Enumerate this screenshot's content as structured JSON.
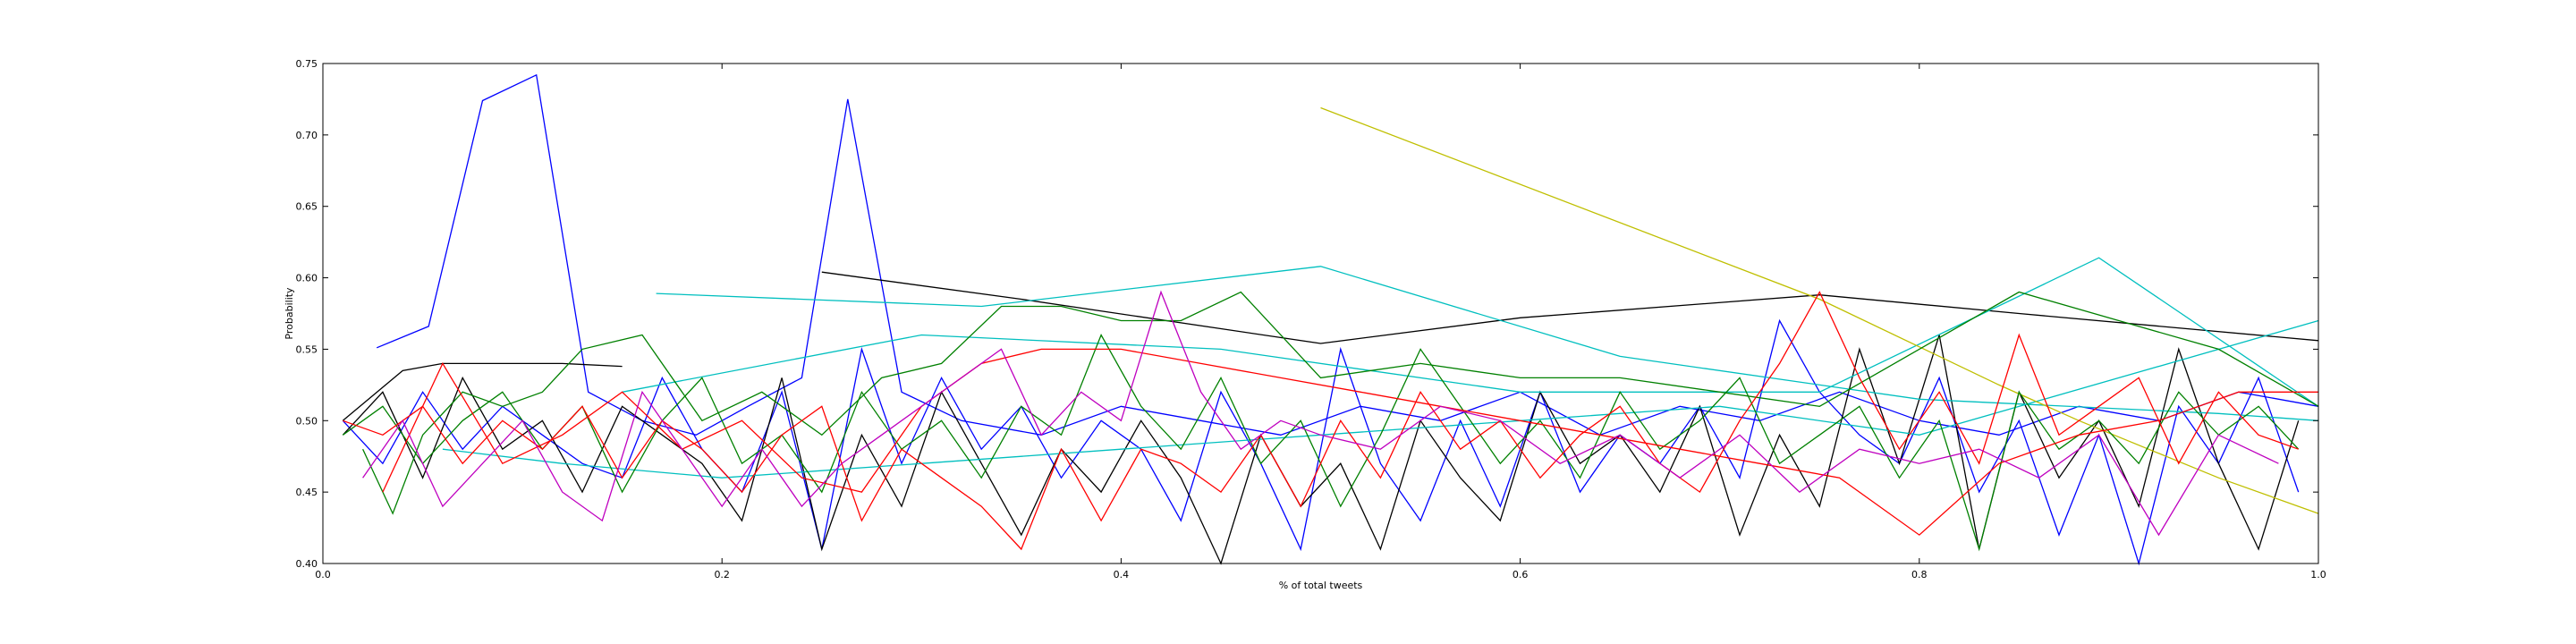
{
  "chart_data": {
    "type": "line",
    "title": "",
    "xlabel": "% of total tweets",
    "ylabel": "Probability",
    "xlim": [
      0.0,
      1.0
    ],
    "ylim": [
      0.4,
      0.75
    ],
    "xticks": [
      "0.0",
      "0.2",
      "0.4",
      "0.6",
      "0.8",
      "1.0"
    ],
    "yticks": [
      "0.40",
      "0.45",
      "0.50",
      "0.55",
      "0.60",
      "0.65",
      "0.70",
      "0.75"
    ],
    "grid": false,
    "legend": "none",
    "series": [
      {
        "color": "#0000ff",
        "x": [
          0.027,
          0.053,
          0.08,
          0.107,
          0.133,
          0.16,
          0.187,
          0.213,
          0.24,
          0.263,
          0.29,
          0.32,
          0.36,
          0.4,
          0.44,
          0.48,
          0.52,
          0.56,
          0.6,
          0.64,
          0.68,
          0.72,
          0.76,
          0.8,
          0.84,
          0.88,
          0.92,
          0.96,
          1.0
        ],
        "y": [
          0.551,
          0.566,
          0.724,
          0.742,
          0.52,
          0.5,
          0.49,
          0.51,
          0.53,
          0.725,
          0.52,
          0.5,
          0.49,
          0.51,
          0.5,
          0.49,
          0.51,
          0.5,
          0.52,
          0.49,
          0.51,
          0.5,
          0.52,
          0.5,
          0.49,
          0.51,
          0.5,
          0.52,
          0.51
        ]
      },
      {
        "color": "#0000ff",
        "x": [
          0.01,
          0.03,
          0.05,
          0.07,
          0.09,
          0.11,
          0.13,
          0.15,
          0.17,
          0.19,
          0.21,
          0.23,
          0.25,
          0.27,
          0.29,
          0.31,
          0.33,
          0.35,
          0.37,
          0.39,
          0.41,
          0.43,
          0.45,
          0.47,
          0.49,
          0.51,
          0.53,
          0.55,
          0.57,
          0.59,
          0.61,
          0.63,
          0.65,
          0.67,
          0.69,
          0.71,
          0.73,
          0.75,
          0.77,
          0.79,
          0.81,
          0.83,
          0.85,
          0.87,
          0.89,
          0.91,
          0.93,
          0.95,
          0.97,
          0.99
        ],
        "y": [
          0.5,
          0.47,
          0.52,
          0.48,
          0.51,
          0.49,
          0.47,
          0.46,
          0.53,
          0.48,
          0.45,
          0.52,
          0.41,
          0.55,
          0.47,
          0.53,
          0.48,
          0.51,
          0.46,
          0.5,
          0.48,
          0.43,
          0.52,
          0.47,
          0.41,
          0.55,
          0.47,
          0.43,
          0.5,
          0.44,
          0.52,
          0.45,
          0.49,
          0.47,
          0.51,
          0.46,
          0.57,
          0.52,
          0.49,
          0.47,
          0.53,
          0.45,
          0.5,
          0.42,
          0.49,
          0.4,
          0.51,
          0.47,
          0.53,
          0.45
        ]
      },
      {
        "color": "#000000",
        "x": [
          0.25,
          0.35,
          0.5,
          0.6,
          0.75,
          0.85,
          1.0
        ],
        "y": [
          0.604,
          0.585,
          0.554,
          0.572,
          0.588,
          0.575,
          0.556
        ]
      },
      {
        "color": "#000000",
        "x": [
          0.01,
          0.03,
          0.05,
          0.07,
          0.09,
          0.11,
          0.13,
          0.15,
          0.17,
          0.19,
          0.21,
          0.23,
          0.25,
          0.27,
          0.29,
          0.31,
          0.33,
          0.35,
          0.37,
          0.39,
          0.41,
          0.43,
          0.45,
          0.47,
          0.49,
          0.51,
          0.53,
          0.55,
          0.57,
          0.59,
          0.61,
          0.63,
          0.65,
          0.67,
          0.69,
          0.71,
          0.73,
          0.75,
          0.77,
          0.79,
          0.81,
          0.83,
          0.85,
          0.87,
          0.89,
          0.91,
          0.93,
          0.95,
          0.97,
          0.99
        ],
        "y": [
          0.49,
          0.52,
          0.46,
          0.53,
          0.48,
          0.5,
          0.45,
          0.51,
          0.49,
          0.47,
          0.43,
          0.53,
          0.41,
          0.49,
          0.44,
          0.52,
          0.47,
          0.42,
          0.48,
          0.45,
          0.5,
          0.46,
          0.4,
          0.49,
          0.44,
          0.47,
          0.41,
          0.5,
          0.46,
          0.43,
          0.52,
          0.47,
          0.49,
          0.45,
          0.51,
          0.42,
          0.49,
          0.44,
          0.55,
          0.47,
          0.56,
          0.41,
          0.52,
          0.46,
          0.5,
          0.44,
          0.55,
          0.47,
          0.41,
          0.5
        ]
      },
      {
        "color": "#000000",
        "x": [
          0.01,
          0.04,
          0.06,
          0.09,
          0.12,
          0.15
        ],
        "y": [
          0.5,
          0.535,
          0.54,
          0.54,
          0.54,
          0.538
        ]
      },
      {
        "color": "#00bfbf",
        "x": [
          0.167,
          0.33,
          0.5,
          0.65,
          0.8,
          0.95,
          1.0
        ],
        "y": [
          0.589,
          0.58,
          0.608,
          0.545,
          0.515,
          0.505,
          0.5
        ]
      },
      {
        "color": "#00bfbf",
        "x": [
          0.15,
          0.3,
          0.45,
          0.6,
          0.75,
          0.89,
          1.0
        ],
        "y": [
          0.52,
          0.56,
          0.55,
          0.52,
          0.52,
          0.614,
          0.51
        ]
      },
      {
        "color": "#00bfbf",
        "x": [
          0.06,
          0.12,
          0.2,
          0.3,
          0.4,
          0.5,
          0.6,
          0.7,
          0.8,
          0.9,
          1.0
        ],
        "y": [
          0.48,
          0.47,
          0.46,
          0.47,
          0.48,
          0.49,
          0.5,
          0.51,
          0.49,
          0.53,
          0.57
        ]
      },
      {
        "color": "#bfbf00",
        "x": [
          0.5,
          0.75,
          0.84,
          0.88,
          0.95,
          1.0
        ],
        "y": [
          0.719,
          0.585,
          0.525,
          0.5,
          0.46,
          0.435
        ]
      },
      {
        "color": "#008000",
        "x": [
          0.02,
          0.035,
          0.05,
          0.07,
          0.09,
          0.11,
          0.13,
          0.16,
          0.19,
          0.22,
          0.25,
          0.28,
          0.31,
          0.34,
          0.37,
          0.4,
          0.43,
          0.46,
          0.5,
          0.55,
          0.6,
          0.65,
          0.7,
          0.75,
          0.8,
          0.85,
          0.9,
          0.95,
          1.0
        ],
        "y": [
          0.48,
          0.435,
          0.49,
          0.52,
          0.51,
          0.52,
          0.55,
          0.56,
          0.5,
          0.52,
          0.49,
          0.53,
          0.54,
          0.58,
          0.58,
          0.57,
          0.57,
          0.59,
          0.53,
          0.54,
          0.53,
          0.53,
          0.52,
          0.51,
          0.55,
          0.59,
          0.57,
          0.55,
          0.51
        ]
      },
      {
        "color": "#008000",
        "x": [
          0.01,
          0.03,
          0.05,
          0.07,
          0.09,
          0.11,
          0.13,
          0.15,
          0.17,
          0.19,
          0.21,
          0.23,
          0.25,
          0.27,
          0.29,
          0.31,
          0.33,
          0.35,
          0.37,
          0.39,
          0.41,
          0.43,
          0.45,
          0.47,
          0.49,
          0.51,
          0.53,
          0.55,
          0.57,
          0.59,
          0.61,
          0.63,
          0.65,
          0.67,
          0.69,
          0.71,
          0.73,
          0.75,
          0.77,
          0.79,
          0.81,
          0.83,
          0.85,
          0.87,
          0.89,
          0.91,
          0.93,
          0.95,
          0.97,
          0.99
        ],
        "y": [
          0.49,
          0.51,
          0.47,
          0.5,
          0.52,
          0.48,
          0.51,
          0.45,
          0.5,
          0.53,
          0.47,
          0.49,
          0.45,
          0.52,
          0.48,
          0.5,
          0.46,
          0.51,
          0.49,
          0.56,
          0.51,
          0.48,
          0.53,
          0.47,
          0.5,
          0.44,
          0.49,
          0.55,
          0.51,
          0.47,
          0.5,
          0.46,
          0.52,
          0.48,
          0.5,
          0.53,
          0.47,
          0.49,
          0.51,
          0.46,
          0.5,
          0.41,
          0.52,
          0.48,
          0.5,
          0.47,
          0.52,
          0.49,
          0.51,
          0.48
        ]
      },
      {
        "color": "#ff0000",
        "x": [
          0.03,
          0.06,
          0.09,
          0.12,
          0.15,
          0.18,
          0.21,
          0.24,
          0.27,
          0.3,
          0.33,
          0.36,
          0.4,
          0.44,
          0.48,
          0.52,
          0.56,
          0.6,
          0.64,
          0.68,
          0.72,
          0.76,
          0.8,
          0.84,
          0.88,
          0.92,
          0.96,
          1.0
        ],
        "y": [
          0.45,
          0.54,
          0.47,
          0.49,
          0.52,
          0.48,
          0.5,
          0.46,
          0.45,
          0.51,
          0.54,
          0.55,
          0.55,
          0.54,
          0.53,
          0.52,
          0.51,
          0.5,
          0.49,
          0.48,
          0.47,
          0.46,
          0.42,
          0.47,
          0.49,
          0.5,
          0.52,
          0.52
        ]
      },
      {
        "color": "#ff0000",
        "x": [
          0.01,
          0.03,
          0.05,
          0.07,
          0.09,
          0.11,
          0.13,
          0.15,
          0.17,
          0.19,
          0.21,
          0.23,
          0.25,
          0.27,
          0.29,
          0.31,
          0.33,
          0.35,
          0.37,
          0.39,
          0.41,
          0.43,
          0.45,
          0.47,
          0.49,
          0.51,
          0.53,
          0.55,
          0.57,
          0.59,
          0.61,
          0.63,
          0.65,
          0.67,
          0.69,
          0.71,
          0.73,
          0.75,
          0.77,
          0.79,
          0.81,
          0.83,
          0.85,
          0.87,
          0.89,
          0.91,
          0.93,
          0.95,
          0.97,
          0.99
        ],
        "y": [
          0.5,
          0.49,
          0.51,
          0.47,
          0.5,
          0.48,
          0.51,
          0.46,
          0.5,
          0.48,
          0.45,
          0.49,
          0.51,
          0.43,
          0.48,
          0.46,
          0.44,
          0.41,
          0.48,
          0.43,
          0.48,
          0.47,
          0.45,
          0.49,
          0.44,
          0.5,
          0.46,
          0.52,
          0.48,
          0.5,
          0.46,
          0.49,
          0.51,
          0.47,
          0.45,
          0.5,
          0.54,
          0.59,
          0.53,
          0.48,
          0.52,
          0.47,
          0.56,
          0.49,
          0.51,
          0.53,
          0.47,
          0.52,
          0.49,
          0.48
        ]
      },
      {
        "color": "#bf00bf",
        "x": [
          0.02,
          0.04,
          0.06,
          0.08,
          0.1,
          0.12,
          0.14,
          0.16,
          0.18,
          0.2,
          0.22,
          0.24,
          0.26,
          0.28,
          0.3,
          0.32,
          0.34,
          0.36,
          0.38,
          0.4,
          0.42,
          0.44,
          0.46,
          0.48,
          0.5,
          0.53,
          0.56,
          0.59,
          0.62,
          0.65,
          0.68,
          0.71,
          0.74,
          0.77,
          0.8,
          0.83,
          0.86,
          0.89,
          0.92,
          0.95,
          0.98
        ],
        "y": [
          0.46,
          0.5,
          0.44,
          0.47,
          0.5,
          0.45,
          0.43,
          0.52,
          0.48,
          0.44,
          0.48,
          0.44,
          0.47,
          0.49,
          0.51,
          0.53,
          0.55,
          0.49,
          0.52,
          0.5,
          0.59,
          0.52,
          0.48,
          0.5,
          0.49,
          0.48,
          0.51,
          0.5,
          0.47,
          0.49,
          0.46,
          0.49,
          0.45,
          0.48,
          0.47,
          0.48,
          0.46,
          0.49,
          0.42,
          0.49,
          0.47
        ]
      }
    ]
  }
}
